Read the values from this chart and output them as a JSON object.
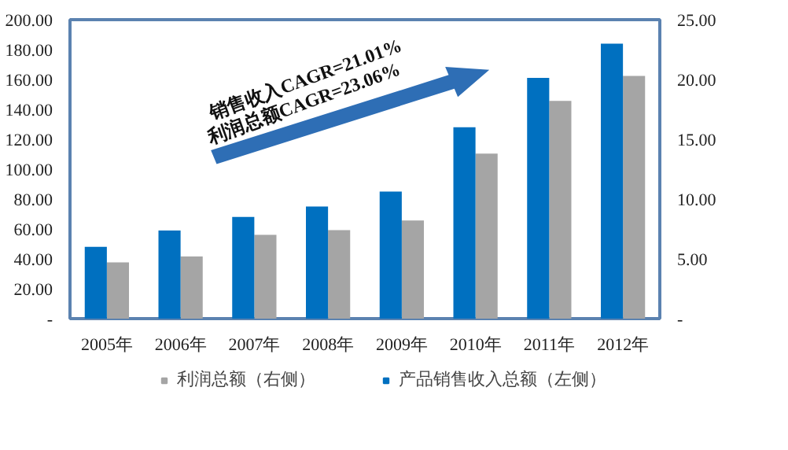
{
  "chart_data": {
    "type": "bar",
    "categories": [
      "2005年",
      "2006年",
      "2007年",
      "2008年",
      "2009年",
      "2010年",
      "2011年",
      "2012年"
    ],
    "series": [
      {
        "name": "利润总额（右侧）",
        "color": "#a5a5a5",
        "axis": "y2",
        "values": [
          4.7,
          5.2,
          7.0,
          7.4,
          8.2,
          13.8,
          18.2,
          20.3
        ]
      },
      {
        "name": "产品销售收入总额（左侧）",
        "color": "#0070c0",
        "values": [
          48,
          59,
          68,
          75,
          85,
          128,
          161,
          184
        ]
      }
    ],
    "ylim": [
      0,
      200
    ],
    "yticks": [
      {
        "value": 0,
        "label": "-"
      },
      {
        "value": 20,
        "label": "20.00"
      },
      {
        "value": 40,
        "label": "40.00"
      },
      {
        "value": 60,
        "label": "60.00"
      },
      {
        "value": 80,
        "label": "80.00"
      },
      {
        "value": 100,
        "label": "100.00"
      },
      {
        "value": 120,
        "label": "120.00"
      },
      {
        "value": 140,
        "label": "140.00"
      },
      {
        "value": 160,
        "label": "160.00"
      },
      {
        "value": 180,
        "label": "180.00"
      },
      {
        "value": 200,
        "label": "200.00"
      }
    ],
    "y2lim": [
      0,
      25
    ],
    "y2ticks": [
      {
        "value": 0,
        "label": "-"
      },
      {
        "value": 5,
        "label": "5.00"
      },
      {
        "value": 10,
        "label": "10.00"
      },
      {
        "value": 15,
        "label": "15.00"
      },
      {
        "value": 20,
        "label": "20.00"
      },
      {
        "value": 25,
        "label": "25.00"
      }
    ],
    "annotations": [
      "销售收入CAGR=21.01%",
      "利润总额CAGR=23.06%"
    ],
    "grid": false,
    "legend": "bottom"
  }
}
